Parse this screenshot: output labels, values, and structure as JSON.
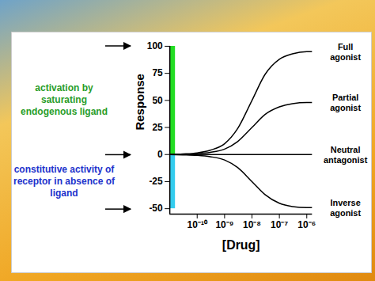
{
  "chart_data": {
    "type": "line",
    "xlabel": "[Drug]",
    "ylabel": "Response",
    "log": "x",
    "grid": false,
    "xlim": [
      1e-11,
      1.6e-06
    ],
    "xticks": [
      {
        "value": 1e-10,
        "label": "10⁻¹⁰"
      },
      {
        "value": 1e-09,
        "label": "10⁻⁹"
      },
      {
        "value": 1e-08,
        "label": "10⁻⁸"
      },
      {
        "value": 1e-07,
        "label": "10⁻⁷"
      },
      {
        "value": 1e-06,
        "label": "10⁻⁶"
      }
    ],
    "ylim": [
      -55,
      100
    ],
    "yticks": [
      -50,
      -25,
      0,
      25,
      50,
      75,
      100
    ],
    "x": [
      1e-11,
      3e-11,
      1e-10,
      3e-10,
      1e-09,
      3e-09,
      1e-08,
      3e-08,
      1e-07,
      3e-07,
      1e-06,
      1.6e-06
    ],
    "series": [
      {
        "name": "Full agonist",
        "color": "#000000",
        "values": [
          0,
          0.5,
          1.5,
          4,
          10,
          24,
          50,
          74,
          88,
          93,
          95,
          95
        ]
      },
      {
        "name": "Partial agonist",
        "color": "#000000",
        "values": [
          0,
          0.3,
          0.8,
          2,
          5,
          12,
          25,
          37,
          44,
          47,
          48,
          48
        ]
      },
      {
        "name": "Neutral antagonist",
        "color": "#000000",
        "values": [
          0,
          0,
          0,
          0,
          0,
          0,
          0,
          0,
          0,
          0,
          0,
          0
        ]
      },
      {
        "name": "Inverse agonist",
        "color": "#000000",
        "values": [
          0,
          -0.3,
          -0.8,
          -2,
          -5,
          -12,
          -25,
          -37,
          -45,
          -48,
          -49,
          -49
        ]
      }
    ],
    "bands": [
      {
        "x1": 1e-11,
        "x2": 1.6e-11,
        "y1": 0,
        "y2": 100,
        "color": "#22dd22"
      },
      {
        "x1": 1e-11,
        "x2": 1.6e-11,
        "y1": 0,
        "y2": -50,
        "color": "#33ccee"
      }
    ],
    "arrows": [
      100,
      0,
      -50
    ],
    "annotations": [
      {
        "text": "activation by saturating endogenous ligand",
        "color": "#2a9d2a"
      },
      {
        "text": "constitutive activity of receptor in absence of ligand",
        "color": "#2233cc"
      }
    ]
  }
}
